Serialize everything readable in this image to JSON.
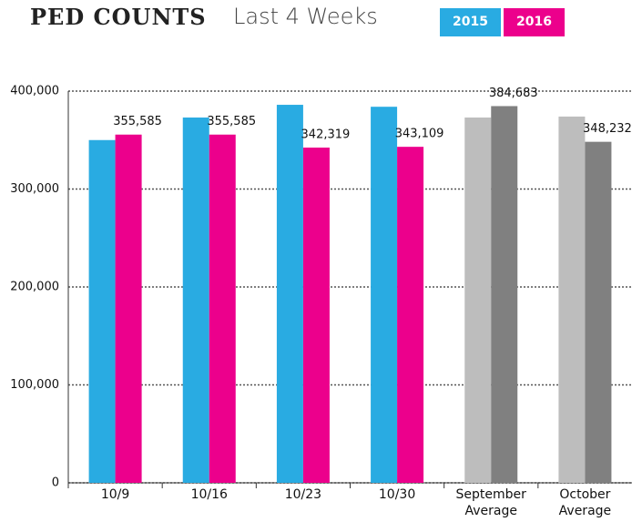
{
  "chart_data": {
    "type": "bar",
    "title": "PED COUNTS",
    "subtitle": "Last 4 Weeks",
    "categories": [
      "10/9",
      "10/16",
      "10/23",
      "10/30",
      "September Average",
      "October Average"
    ],
    "series": [
      {
        "name": "2015",
        "color": "#29abe2",
        "point_colors": [
          "#29abe2",
          "#29abe2",
          "#29abe2",
          "#29abe2",
          "#bdbdbd",
          "#bdbdbd"
        ],
        "values": [
          350000,
          373000,
          386000,
          384000,
          373000,
          374000
        ]
      },
      {
        "name": "2016",
        "color": "#ec008c",
        "point_colors": [
          "#ec008c",
          "#ec008c",
          "#ec008c",
          "#ec008c",
          "#808080",
          "#808080"
        ],
        "values": [
          355585,
          355585,
          342319,
          343109,
          384683,
          348232
        ],
        "value_labels": [
          "355,585",
          "355,585",
          "342,319",
          "343,109",
          "384,683",
          "348,232"
        ]
      }
    ],
    "ylim": [
      0,
      400000
    ],
    "yticks": [
      0,
      {
        "value": 100000,
        "label": "100,000"
      },
      {
        "value": 200000,
        "label": "200,000"
      },
      {
        "value": 300000,
        "label": "300,000"
      },
      {
        "value": 400000,
        "label": "400,000"
      }
    ],
    "grid": true
  }
}
